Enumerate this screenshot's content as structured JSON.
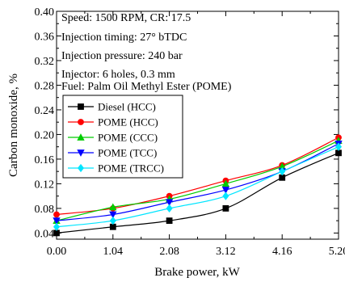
{
  "chart_data": {
    "type": "line",
    "xlabel": "Brake power, kW",
    "ylabel": "Carbon monoxide, %",
    "x": [
      0.0,
      1.04,
      2.08,
      3.12,
      4.16,
      5.2
    ],
    "x_tick_labels": [
      "0.00",
      "1.04",
      "2.08",
      "3.12",
      "4.16",
      "5.20"
    ],
    "xlim": [
      0,
      5.2
    ],
    "ylim": [
      0.03,
      0.4
    ],
    "y_ticks": [
      0.04,
      0.08,
      0.12,
      0.16,
      0.2,
      0.24,
      0.28,
      0.32,
      0.36,
      0.4
    ],
    "y_tick_labels": [
      "0.04",
      "0.08",
      "0.12",
      "0.16",
      "0.20",
      "0.24",
      "0.28",
      "0.32",
      "0.36",
      "0.40"
    ],
    "annotations": [
      "Speed: 1500 RPM, CR: 17.5",
      "Injection timing: 27° bTDC",
      "Injection pressure: 240 bar",
      "Injector: 6 holes, 0.3 mm",
      "Fuel: Palm Oil Methyl Ester (POME)"
    ],
    "legend_position": "upper-left, below annotations",
    "grid": false,
    "series": [
      {
        "name": "Diesel (HCC)",
        "color": "#000000",
        "marker": "square",
        "values": [
          0.04,
          0.05,
          0.06,
          0.08,
          0.13,
          0.17
        ]
      },
      {
        "name": "POME (HCC)",
        "color": "#ff0000",
        "marker": "circle",
        "values": [
          0.07,
          0.08,
          0.1,
          0.125,
          0.15,
          0.195
        ]
      },
      {
        "name": "POME (CCC)",
        "color": "#00cc00",
        "marker": "triangle-up",
        "values": [
          0.06,
          0.082,
          0.095,
          0.12,
          0.148,
          0.19
        ]
      },
      {
        "name": "POME (TCC)",
        "color": "#0000ff",
        "marker": "triangle-down",
        "values": [
          0.06,
          0.07,
          0.09,
          0.11,
          0.14,
          0.185
        ]
      },
      {
        "name": "POME (TRCC)",
        "color": "#00e5ff",
        "marker": "diamond",
        "values": [
          0.05,
          0.06,
          0.08,
          0.1,
          0.14,
          0.18
        ]
      }
    ]
  }
}
